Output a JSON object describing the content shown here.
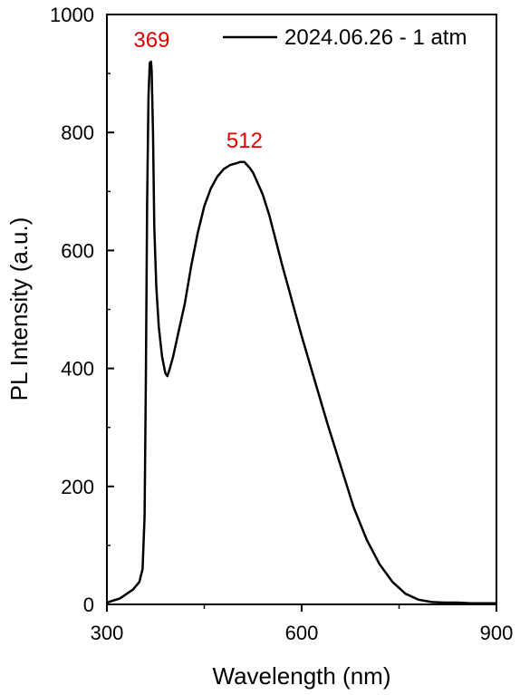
{
  "chart_data": {
    "type": "line",
    "xlabel": "Wavelength (nm)",
    "ylabel": "PL Intensity (a.u.)",
    "xlim": [
      300,
      900
    ],
    "ylim": [
      0,
      1000
    ],
    "x_ticks": [
      300,
      600,
      900
    ],
    "y_ticks": [
      0,
      200,
      400,
      600,
      800,
      1000
    ],
    "x_tick_labels": [
      "300",
      "600",
      "900"
    ],
    "y_tick_labels": [
      "0",
      "200",
      "400",
      "600",
      "800",
      "1000"
    ],
    "grid": false,
    "legend_position": "top-right",
    "annotation_color": "#e00000",
    "line_color": "#000000",
    "series": [
      {
        "name": "2024.06.26 - 1 atm",
        "x": [
          300,
          320,
          340,
          350,
          355,
          358,
          360,
          362,
          364,
          366,
          368,
          369,
          371,
          373,
          376,
          380,
          385,
          390,
          393,
          397,
          402,
          410,
          420,
          430,
          440,
          450,
          460,
          470,
          480,
          490,
          500,
          505,
          510,
          512,
          515,
          520,
          525,
          530,
          540,
          550,
          560,
          570,
          580,
          590,
          600,
          620,
          640,
          660,
          680,
          700,
          720,
          740,
          760,
          780,
          800,
          820,
          840,
          860,
          880,
          900
        ],
        "y": [
          3,
          10,
          25,
          38,
          60,
          150,
          380,
          680,
          860,
          918,
          920,
          905,
          800,
          640,
          540,
          470,
          420,
          392,
          387,
          400,
          420,
          460,
          510,
          575,
          630,
          675,
          705,
          725,
          738,
          745,
          748,
          750,
          750,
          750,
          746,
          740,
          732,
          720,
          695,
          660,
          618,
          575,
          535,
          495,
          455,
          380,
          305,
          235,
          165,
          110,
          68,
          38,
          18,
          8,
          4,
          3,
          3,
          2,
          2,
          2
        ]
      }
    ],
    "annotations": [
      {
        "text": "369",
        "x": 369,
        "y": 920
      },
      {
        "text": "512",
        "x": 512,
        "y": 750
      }
    ]
  }
}
